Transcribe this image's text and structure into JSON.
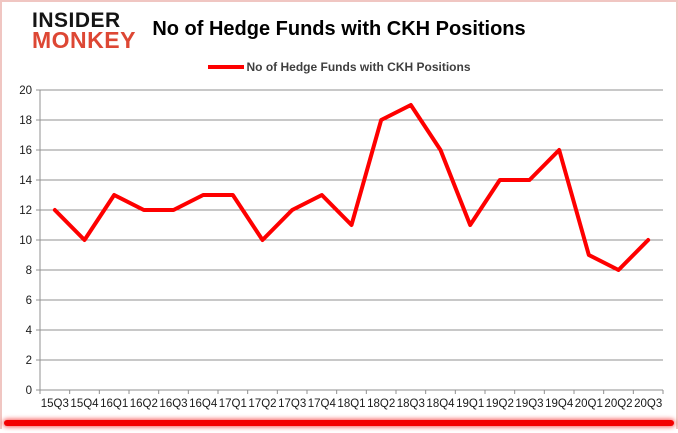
{
  "logo": {
    "line1": "INSIDER",
    "line2": "MONKEY"
  },
  "header": {
    "title": "No of Hedge Funds with CKH Positions"
  },
  "legend": {
    "label": "No of Hedge Funds with CKH Positions"
  },
  "colors": {
    "line": "#fe0000",
    "grid": "#909090",
    "axis": "#909090",
    "axis_text": "#1a1a1a",
    "title_text": "#000000",
    "legend_text": "#3f3f3f",
    "logo_insider": "#141414",
    "logo_monkey": "#dd4734",
    "frame_border": "#f0c6c2",
    "bottom_bar": "#f30000"
  },
  "chart_data": {
    "type": "line",
    "title": "No of Hedge Funds with CKH Positions",
    "categories": [
      "15Q3",
      "15Q4",
      "16Q1",
      "16Q2",
      "16Q3",
      "16Q4",
      "17Q1",
      "17Q2",
      "17Q3",
      "17Q4",
      "18Q1",
      "18Q2",
      "18Q3",
      "18Q4",
      "19Q1",
      "19Q2",
      "19Q3",
      "19Q4",
      "20Q1",
      "20Q2",
      "20Q3"
    ],
    "series": [
      {
        "name": "No of Hedge Funds with CKH Positions",
        "color": "#fe0000",
        "values": [
          12,
          10,
          13,
          12,
          12,
          13,
          13,
          10,
          12,
          13,
          11,
          18,
          19,
          16,
          11,
          14,
          14,
          16,
          9,
          8,
          10
        ]
      }
    ],
    "ylim": [
      0,
      20
    ],
    "yticks": [
      0,
      2,
      4,
      6,
      8,
      10,
      12,
      14,
      16,
      18,
      20
    ],
    "grid": true,
    "legend_position": "top-center",
    "xlabel": "",
    "ylabel": ""
  }
}
